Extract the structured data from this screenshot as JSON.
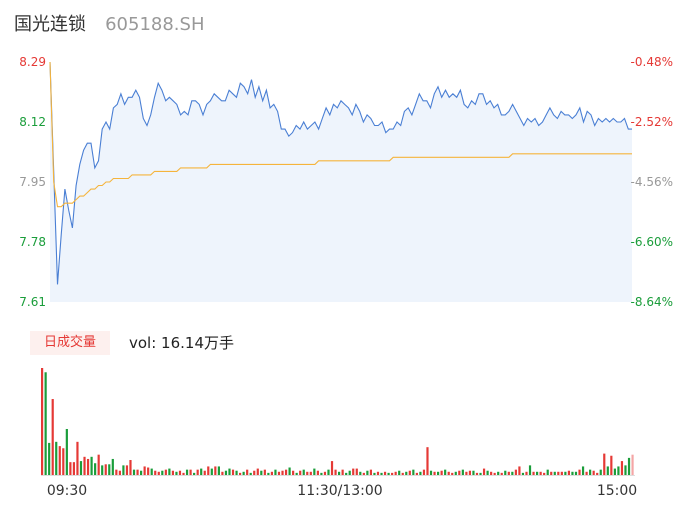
{
  "header": {
    "name": "国光连锁",
    "code": "605188.SH"
  },
  "volume_panel": {
    "badge": "日成交量",
    "vol_label": "vol: 16.14万手"
  },
  "colors": {
    "price_line": "#4a7fd4",
    "avg_line": "#f5b43c",
    "up": "#e53935",
    "down": "#1a9d3a",
    "neutral": "#999999",
    "area_fill": "#eef4fc"
  },
  "chart_data": [
    {
      "type": "line",
      "title": "",
      "xlabel": "",
      "ylabel": "",
      "x_ticks": [
        "09:30",
        "11:30/13:00",
        "15:00"
      ],
      "y_ticks_left": [
        "8.29",
        "8.12",
        "7.95",
        "7.78",
        "7.61"
      ],
      "y_ticks_right": [
        "-0.48%",
        "-2.52%",
        "-4.56%",
        "-6.60%",
        "-8.64%"
      ],
      "ylim": [
        7.61,
        8.29
      ],
      "grid": false,
      "series": [
        {
          "values": [
            8.29,
            7.98,
            7.66,
            7.8,
            7.93,
            7.87,
            7.82,
            7.94,
            8.0,
            8.04,
            8.06,
            8.06,
            7.99,
            8.01,
            8.1,
            8.12,
            8.1,
            8.16,
            8.17,
            8.2,
            8.17,
            8.19,
            8.19,
            8.21,
            8.19,
            8.13,
            8.11,
            8.14,
            8.19,
            8.23,
            8.21,
            8.18,
            8.19,
            8.18,
            8.17,
            8.14,
            8.15,
            8.14,
            8.18,
            8.18,
            8.17,
            8.14,
            8.17,
            8.18,
            8.2,
            8.19,
            8.18,
            8.18,
            8.21,
            8.2,
            8.19,
            8.23,
            8.22,
            8.2,
            8.24,
            8.19,
            8.22,
            8.18,
            8.21,
            8.16,
            8.17,
            8.15,
            8.1,
            8.1,
            8.08,
            8.09,
            8.11,
            8.1,
            8.12,
            8.1,
            8.11,
            8.12,
            8.1,
            8.13,
            8.16,
            8.14,
            8.17,
            8.16,
            8.18,
            8.17,
            8.16,
            8.14,
            8.17,
            8.15,
            8.12,
            8.14,
            8.13,
            8.11,
            8.11,
            8.12,
            8.09,
            8.1,
            8.1,
            8.12,
            8.11,
            8.15,
            8.16,
            8.14,
            8.17,
            8.2,
            8.18,
            8.18,
            8.16,
            8.2,
            8.22,
            8.19,
            8.21,
            8.19,
            8.2,
            8.19,
            8.21,
            8.17,
            8.16,
            8.18,
            8.17,
            8.2,
            8.2,
            8.17,
            8.18,
            8.16,
            8.17,
            8.14,
            8.14,
            8.15,
            8.17,
            8.15,
            8.13,
            8.11,
            8.13,
            8.12,
            8.13,
            8.11,
            8.12,
            8.14,
            8.16,
            8.14,
            8.13,
            8.15,
            8.14,
            8.14,
            8.13,
            8.14,
            8.16,
            8.12,
            8.15,
            8.14,
            8.11,
            8.13,
            8.12,
            8.13,
            8.12,
            8.13,
            8.12,
            8.12,
            8.13,
            8.1,
            8.1
          ]
        },
        {
          "values": [
            8.29,
            7.95,
            7.88,
            7.88,
            7.89,
            7.89,
            7.89,
            7.9,
            7.91,
            7.91,
            7.92,
            7.93,
            7.93,
            7.94,
            7.94,
            7.95,
            7.95,
            7.96,
            7.96,
            7.96,
            7.96,
            7.96,
            7.97,
            7.97,
            7.97,
            7.97,
            7.97,
            7.97,
            7.98,
            7.98,
            7.98,
            7.98,
            7.98,
            7.98,
            7.98,
            7.99,
            7.99,
            7.99,
            7.99,
            7.99,
            7.99,
            7.99,
            7.99,
            8.0,
            8.0,
            8.0,
            8.0,
            8.0,
            8.0,
            8.0,
            8.0,
            8.0,
            8.0,
            8.0,
            8.0,
            8.0,
            8.0,
            8.0,
            8.0,
            8.0,
            8.0,
            8.0,
            8.0,
            8.0,
            8.0,
            8.0,
            8.0,
            8.0,
            8.0,
            8.0,
            8.0,
            8.0,
            8.01,
            8.01,
            8.01,
            8.01,
            8.01,
            8.01,
            8.01,
            8.01,
            8.01,
            8.01,
            8.01,
            8.01,
            8.01,
            8.01,
            8.01,
            8.01,
            8.01,
            8.01,
            8.01,
            8.01,
            8.02,
            8.02,
            8.02,
            8.02,
            8.02,
            8.02,
            8.02,
            8.02,
            8.02,
            8.02,
            8.02,
            8.02,
            8.02,
            8.02,
            8.02,
            8.02,
            8.02,
            8.02,
            8.02,
            8.02,
            8.02,
            8.02,
            8.02,
            8.02,
            8.02,
            8.02,
            8.02,
            8.02,
            8.02,
            8.02,
            8.02,
            8.02,
            8.03,
            8.03,
            8.03,
            8.03,
            8.03,
            8.03,
            8.03,
            8.03,
            8.03,
            8.03,
            8.03,
            8.03,
            8.03,
            8.03,
            8.03,
            8.03,
            8.03,
            8.03,
            8.03,
            8.03,
            8.03,
            8.03,
            8.03,
            8.03,
            8.03,
            8.03,
            8.03,
            8.03,
            8.03,
            8.03,
            8.03,
            8.03,
            8.03
          ]
        }
      ]
    },
    {
      "type": "bar",
      "title": "",
      "ylim": [
        0,
        100
      ],
      "values": [
        100,
        96,
        30,
        71,
        31,
        27,
        25,
        43,
        12,
        12,
        31,
        13,
        17,
        15,
        17,
        11,
        19,
        9,
        10,
        10,
        15,
        5,
        4,
        9,
        9,
        14,
        5,
        5,
        4,
        8,
        7,
        6,
        4,
        3,
        4,
        5,
        6,
        4,
        3,
        4,
        2,
        5,
        5,
        2,
        5,
        6,
        4,
        8,
        6,
        8,
        8,
        3,
        4,
        6,
        5,
        4,
        2,
        3,
        5,
        2,
        4,
        6,
        4,
        5,
        2,
        3,
        5,
        3,
        4,
        5,
        7,
        4,
        2,
        4,
        5,
        3,
        3,
        6,
        4,
        2,
        3,
        5,
        13,
        5,
        3,
        5,
        2,
        4,
        6,
        6,
        3,
        2,
        4,
        5,
        2,
        3,
        2,
        3,
        2,
        2,
        3,
        4,
        2,
        3,
        4,
        5,
        2,
        3,
        5,
        26,
        4,
        3,
        3,
        4,
        5,
        3,
        2,
        3,
        4,
        5,
        3,
        4,
        4,
        2,
        2,
        6,
        4,
        3,
        2,
        3,
        2,
        4,
        3,
        3,
        5,
        8,
        2,
        3,
        9,
        3,
        3,
        3,
        2,
        5,
        3,
        3,
        3,
        3,
        3,
        4,
        3,
        3,
        5,
        8,
        3,
        5,
        4,
        2,
        5,
        20,
        8,
        18,
        6,
        8,
        13,
        9,
        16,
        19
      ],
      "up": [
        1,
        0,
        0,
        1,
        0,
        1,
        1,
        0,
        1,
        1,
        1,
        0,
        1,
        1,
        0,
        0,
        1,
        0,
        1,
        0,
        0,
        1,
        1,
        0,
        1,
        1,
        0,
        1,
        0,
        1,
        1,
        0,
        1,
        1,
        0,
        1,
        0,
        1,
        0,
        1,
        1,
        0,
        1,
        0,
        1,
        0,
        1,
        1,
        0,
        1,
        0,
        1,
        0,
        0,
        1,
        0,
        1,
        0,
        1,
        0,
        1,
        1,
        0,
        1,
        0,
        1,
        0,
        1,
        1,
        1,
        0,
        1,
        0,
        1,
        0,
        1,
        1,
        0,
        1,
        0,
        1,
        0,
        1,
        1,
        0,
        1,
        0,
        0,
        1,
        1,
        0,
        1,
        0,
        1,
        0,
        1,
        0,
        1,
        0,
        1,
        1,
        0,
        1,
        0,
        1,
        0,
        1,
        0,
        1,
        1,
        0,
        1,
        0,
        1,
        0,
        1,
        1,
        0,
        1,
        0,
        1,
        1,
        0,
        1,
        0,
        1,
        0,
        1,
        1,
        0,
        1,
        0,
        1,
        0,
        1,
        1,
        0,
        1,
        0,
        1,
        0,
        1,
        1,
        0,
        1,
        0,
        1,
        1,
        0,
        1,
        0,
        0,
        1,
        0,
        1,
        0,
        1,
        1,
        0,
        1,
        0,
        1,
        0,
        0,
        1,
        0,
        0,
        1
      ]
    }
  ]
}
